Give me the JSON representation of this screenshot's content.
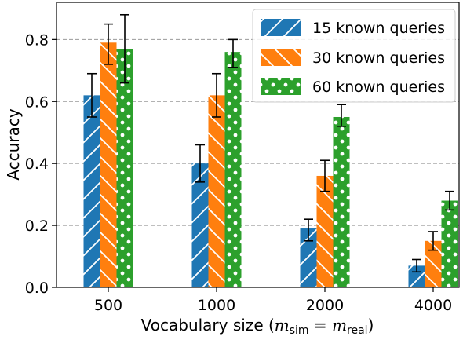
{
  "chart_data": {
    "type": "bar",
    "categories": [
      "500",
      "1000",
      "2000",
      "4000"
    ],
    "ylabel": "Accuracy",
    "xlabel": {
      "prefix": "Vocabulary size (",
      "m1": "m",
      "sub1": "sim",
      "eq": " = ",
      "m2": "m",
      "sub2": "real",
      "suffix": ")"
    },
    "ylim": [
      0.0,
      0.92
    ],
    "yticks": [
      0.0,
      0.2,
      0.4,
      0.6,
      0.8
    ],
    "ytick_labels": [
      "0.0",
      "0.2",
      "0.4",
      "0.6",
      "0.8"
    ],
    "grid": "horizontal dashed",
    "legend_position": "top-right",
    "series": [
      {
        "name": "15 known queries",
        "color": "#1f77b4",
        "hatch": "diagonal",
        "values": [
          0.62,
          0.4,
          0.19,
          0.07
        ],
        "err_low": [
          0.55,
          0.34,
          0.15,
          0.05
        ],
        "err_high": [
          0.69,
          0.46,
          0.22,
          0.09
        ]
      },
      {
        "name": "30 known queries",
        "color": "#ff7f0e",
        "hatch": "back-diagonal",
        "values": [
          0.79,
          0.62,
          0.36,
          0.15
        ],
        "err_low": [
          0.72,
          0.55,
          0.31,
          0.12
        ],
        "err_high": [
          0.85,
          0.69,
          0.41,
          0.18
        ]
      },
      {
        "name": "60 known queries",
        "color": "#2ca02c",
        "hatch": "dots",
        "values": [
          0.77,
          0.76,
          0.55,
          0.28
        ],
        "err_low": [
          0.66,
          0.71,
          0.52,
          0.25
        ],
        "err_high": [
          0.88,
          0.8,
          0.59,
          0.31
        ]
      }
    ]
  }
}
